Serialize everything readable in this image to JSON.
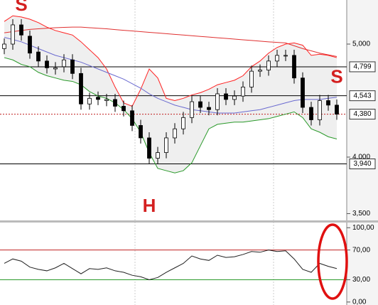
{
  "chart_data": [
    {
      "type": "candlestick",
      "ylim": [
        3440,
        5390
      ],
      "yticks": [
        {
          "value": 5000,
          "label": "5,000"
        },
        {
          "value": 4000,
          "label": "4,000"
        },
        {
          "value": 3500,
          "label": "3,500"
        }
      ],
      "open": [
        4960,
        5000,
        5170,
        5070,
        4930,
        4850,
        4780,
        4800,
        4860,
        4740,
        4470,
        4530,
        4500,
        4510,
        4450,
        4410,
        4280,
        4170,
        3990,
        4040,
        4170,
        4250,
        4350,
        4490,
        4440,
        4420,
        4560,
        4510,
        4540,
        4620,
        4760,
        4770,
        4850,
        4900,
        4900,
        4700,
        4440,
        4330,
        4500,
        4460
      ],
      "high": [
        5050,
        5220,
        5220,
        5120,
        4980,
        4900,
        4840,
        4910,
        4910,
        4790,
        4570,
        4580,
        4560,
        4560,
        4500,
        4460,
        4330,
        4220,
        4090,
        4220,
        4300,
        4400,
        4540,
        4540,
        4490,
        4610,
        4610,
        4590,
        4670,
        4810,
        4820,
        4900,
        4950,
        4950,
        4950,
        4750,
        4490,
        4550,
        4550,
        4510
      ],
      "low": [
        4910,
        4950,
        5030,
        4870,
        4800,
        4740,
        4730,
        4750,
        4690,
        4420,
        4420,
        4460,
        4450,
        4400,
        4360,
        4230,
        4120,
        3940,
        3940,
        3990,
        4120,
        4200,
        4300,
        4390,
        4370,
        4370,
        4460,
        4460,
        4490,
        4570,
        4710,
        4720,
        4800,
        4850,
        4650,
        4390,
        4280,
        4280,
        4410,
        4330
      ],
      "close": [
        5000,
        5170,
        5080,
        4920,
        4850,
        4790,
        4790,
        4860,
        4740,
        4470,
        4520,
        4510,
        4510,
        4450,
        4410,
        4280,
        4170,
        3990,
        4040,
        4170,
        4250,
        4350,
        4490,
        4440,
        4420,
        4560,
        4510,
        4540,
        4620,
        4760,
        4770,
        4850,
        4900,
        4900,
        4700,
        4440,
        4330,
        4500,
        4460,
        4380
      ],
      "up_color": "#ffffff",
      "down_color": "#000000",
      "overlays": [
        {
          "color": "#e03030",
          "values": [
            5100,
            5110,
            5120,
            5130,
            5135,
            5140,
            5145,
            5148,
            5150,
            5150,
            5145,
            5140,
            5135,
            5128,
            5122,
            5116,
            5110,
            5104,
            5098,
            5092,
            5086,
            5080,
            5074,
            5068,
            5062,
            5056,
            5050,
            5044,
            5038,
            5032,
            5026,
            5020,
            5015,
            5010,
            4985,
            4960,
            4940,
            4920,
            4905,
            4890
          ]
        },
        {
          "color": "#ff2020",
          "values": [
            5200,
            5250,
            5240,
            5220,
            5190,
            5150,
            5120,
            5100,
            5080,
            5020,
            4950,
            4880,
            4780,
            4620,
            4480,
            4450,
            4600,
            4780,
            4700,
            4520,
            4500,
            4520,
            4550,
            4570,
            4600,
            4640,
            4660,
            4680,
            4720,
            4800,
            4850,
            4920,
            4970,
            5000,
            5010,
            4990,
            4900,
            4910,
            4900,
            4880
          ]
        },
        {
          "color": "#6a6ad0",
          "values": [
            5060,
            5040,
            5020,
            4990,
            4960,
            4930,
            4900,
            4880,
            4860,
            4840,
            4810,
            4780,
            4750,
            4720,
            4690,
            4650,
            4610,
            4560,
            4520,
            4490,
            4460,
            4440,
            4420,
            4410,
            4400,
            4390,
            4390,
            4390,
            4400,
            4410,
            4420,
            4440,
            4460,
            4480,
            4500,
            4510,
            4510,
            4510,
            4520,
            4530
          ]
        },
        {
          "color": "#2a9a2a",
          "values": [
            4880,
            4860,
            4820,
            4800,
            4750,
            4720,
            4700,
            4680,
            4670,
            4640,
            4580,
            4540,
            4520,
            4480,
            4420,
            4340,
            4220,
            4040,
            3900,
            3880,
            3860,
            3880,
            3950,
            4100,
            4250,
            4290,
            4300,
            4310,
            4310,
            4320,
            4330,
            4340,
            4360,
            4380,
            4400,
            4350,
            4250,
            4220,
            4180,
            4160
          ]
        }
      ],
      "levels": [
        {
          "value": 4799,
          "label": "4,799",
          "color": "#000000",
          "dashed": false
        },
        {
          "value": 4543,
          "label": "4,543",
          "color": "#000000",
          "dashed": false
        },
        {
          "value": 4380,
          "label": "4,380",
          "color": "#c02020",
          "dashed": true
        },
        {
          "value": 3940,
          "label": "3,940",
          "color": "#000000",
          "dashed": false
        }
      ],
      "annotations": [
        {
          "text": "S",
          "index": 2,
          "price": 5340
        },
        {
          "text": "H",
          "index": 17,
          "price": 3560
        },
        {
          "text": "S",
          "index": 39,
          "price": 4700
        }
      ]
    },
    {
      "type": "line",
      "ylim": [
        -4,
        107
      ],
      "yticks": [
        {
          "value": 100,
          "label": "100,00"
        },
        {
          "value": 70,
          "label": "70,00"
        },
        {
          "value": 30,
          "label": "30,00"
        },
        {
          "value": 0,
          "label": "0,00"
        }
      ],
      "levels": [
        {
          "value": 70,
          "color": "#c02020"
        },
        {
          "value": 30,
          "color": "#2a9a2a"
        }
      ],
      "color": "#202020",
      "values": [
        52,
        58,
        55,
        47,
        44,
        42,
        46,
        52,
        45,
        38,
        45,
        44,
        46,
        42,
        40,
        36,
        34,
        30,
        33,
        40,
        46,
        52,
        62,
        58,
        56,
        63,
        60,
        61,
        64,
        68,
        67,
        70,
        68,
        69,
        58,
        44,
        40,
        52,
        48,
        45
      ]
    }
  ]
}
